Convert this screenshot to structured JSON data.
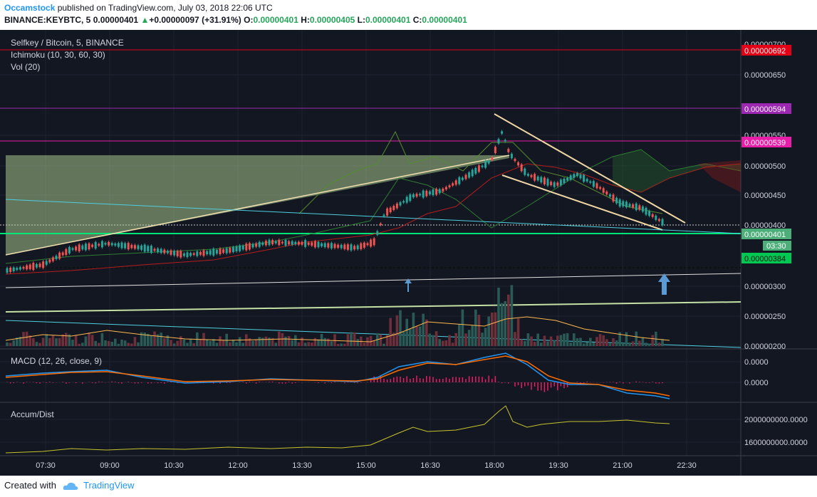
{
  "header": {
    "author": "Occamstock",
    "published_text": " published on TradingView.com, July 03, 2018 22:06 UTC",
    "symbol_line": "BINANCE:KEYBTC, 5",
    "price": "0.00000401",
    "change": "+0.00000097 (+31.91%)",
    "o_label": "O:",
    "o_value": "0.00000401",
    "h_label": "H:",
    "h_value": "0.00000405",
    "l_label": "L:",
    "l_value": "0.00000401",
    "c_label": "C:",
    "c_value": "0.00000401"
  },
  "legend": {
    "title": "Selfkey / Bitcoin, 5, BINANCE",
    "ichimoku": "Ichimoku (10, 30, 60, 30)",
    "vol": "Vol (20)",
    "macd": "MACD (12, 26, close, 9)",
    "accum": "Accum/Dist"
  },
  "price_axis": [
    "0.00000700",
    "0.00000650",
    "0.00000550",
    "0.00000500",
    "0.00000450",
    "0.00000400",
    "0.00000300",
    "0.00000250",
    "0.00000200"
  ],
  "price_badges": [
    {
      "text": "0.00000692",
      "color": "#e30016"
    },
    {
      "text": "0.00000594",
      "color": "#9c27b0"
    },
    {
      "text": "0.00000539",
      "color": "#e91ea8"
    },
    {
      "text": "0.00000401",
      "color": "#4caf7a"
    },
    {
      "text": "03:30",
      "color": "#4caf7a"
    },
    {
      "text": "0.00000384",
      "color": "#00c853"
    }
  ],
  "macd_axis": [
    "0.0000",
    "0.0000"
  ],
  "accum_axis": [
    "2000000000.0000",
    "1600000000.0000"
  ],
  "time_axis": [
    "07:30",
    "09:00",
    "10:30",
    "12:00",
    "13:30",
    "15:00",
    "16:30",
    "18:00",
    "19:30",
    "21:00",
    "22:30"
  ],
  "footer": {
    "created_with": "Created with",
    "brand": "TradingView"
  },
  "colors": {
    "background": "#131722",
    "up": "#26a69a",
    "down": "#ef5350",
    "accent": "#2196f3"
  }
}
